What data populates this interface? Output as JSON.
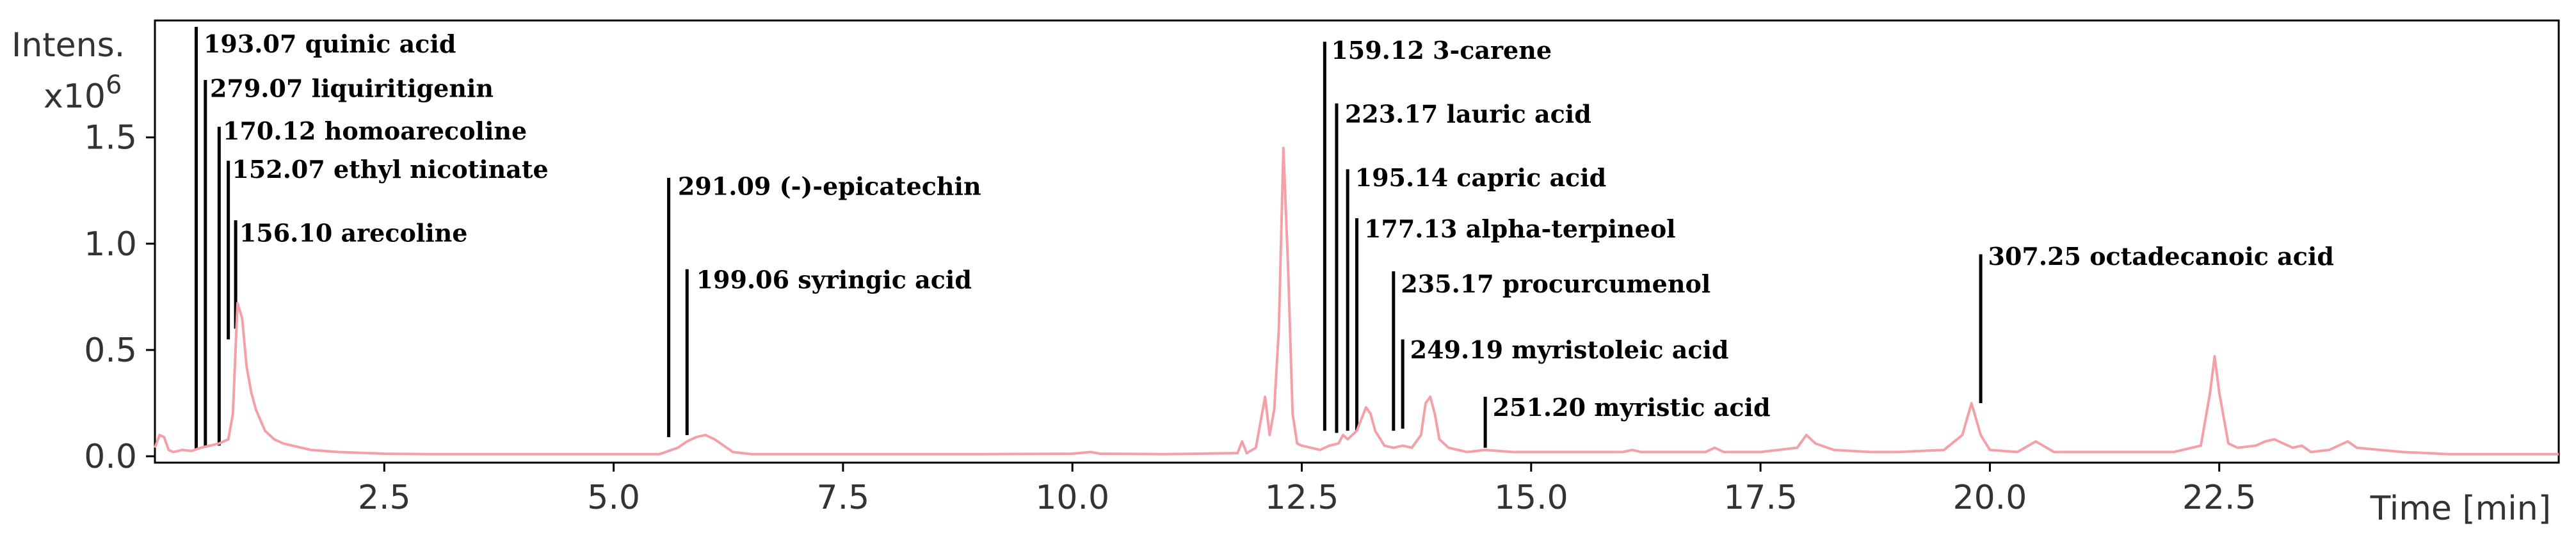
{
  "chart_data": {
    "type": "line",
    "ylabel_line1": "Intens.",
    "ylabel_line2": "x10",
    "ylabel_exponent": "6",
    "xlabel": "Time [min]",
    "xlim": [
      0.0,
      26.2
    ],
    "ylim": [
      -0.03,
      2.05
    ],
    "xticks": [
      2.5,
      5.0,
      7.5,
      10.0,
      12.5,
      15.0,
      17.5,
      20.0,
      22.5
    ],
    "xtick_labels": [
      "2.5",
      "5.0",
      "7.5",
      "10.0",
      "12.5",
      "15.0",
      "17.5",
      "20.0",
      "22.5"
    ],
    "yticks": [
      0.0,
      0.5,
      1.0,
      1.5
    ],
    "ytick_labels": [
      "0.0",
      "0.5",
      "1.0",
      "1.5"
    ],
    "line_color": "#f4a0a8",
    "series": [
      {
        "x": [
          0.0,
          0.05,
          0.1,
          0.15,
          0.2,
          0.3,
          0.4,
          0.5,
          0.6,
          0.7,
          0.8,
          0.85,
          0.9,
          0.95,
          1.0,
          1.05,
          1.1,
          1.2,
          1.3,
          1.4,
          1.5,
          1.7,
          2.0,
          2.5,
          3.0,
          4.0,
          5.0,
          5.5,
          5.7,
          5.8,
          5.9,
          6.0,
          6.1,
          6.2,
          6.3,
          6.5,
          7.0,
          8.0,
          9.0,
          10.0,
          10.2,
          10.3,
          11.0,
          11.8,
          11.85,
          11.9,
          12.0,
          12.1,
          12.15,
          12.2,
          12.25,
          12.3,
          12.35,
          12.4,
          12.45,
          12.5,
          12.6,
          12.7,
          12.8,
          12.9,
          12.95,
          13.0,
          13.1,
          13.2,
          13.25,
          13.3,
          13.4,
          13.5,
          13.6,
          13.7,
          13.8,
          13.85,
          13.9,
          13.95,
          14.0,
          14.1,
          14.3,
          14.5,
          14.8,
          15.0,
          15.5,
          16.0,
          16.1,
          16.2,
          16.5,
          16.9,
          17.0,
          17.1,
          17.5,
          17.9,
          18.0,
          18.1,
          18.3,
          18.7,
          19.0,
          19.5,
          19.7,
          19.8,
          19.9,
          20.0,
          20.3,
          20.5,
          20.7,
          21.0,
          21.5,
          22.0,
          22.3,
          22.4,
          22.45,
          22.5,
          22.6,
          22.7,
          22.9,
          23.0,
          23.1,
          23.2,
          23.3,
          23.4,
          23.5,
          23.7,
          23.8,
          23.9,
          24.0,
          24.5,
          25.0,
          26.2
        ],
        "y": [
          0.04,
          0.1,
          0.09,
          0.03,
          0.02,
          0.03,
          0.025,
          0.04,
          0.05,
          0.06,
          0.08,
          0.2,
          0.72,
          0.65,
          0.42,
          0.3,
          0.22,
          0.12,
          0.08,
          0.06,
          0.05,
          0.03,
          0.02,
          0.012,
          0.01,
          0.01,
          0.01,
          0.01,
          0.04,
          0.07,
          0.09,
          0.1,
          0.08,
          0.05,
          0.02,
          0.01,
          0.01,
          0.01,
          0.01,
          0.012,
          0.02,
          0.012,
          0.01,
          0.015,
          0.07,
          0.015,
          0.04,
          0.28,
          0.1,
          0.22,
          0.6,
          1.45,
          0.9,
          0.2,
          0.06,
          0.05,
          0.04,
          0.03,
          0.05,
          0.06,
          0.1,
          0.08,
          0.12,
          0.23,
          0.2,
          0.12,
          0.05,
          0.04,
          0.05,
          0.04,
          0.1,
          0.25,
          0.28,
          0.2,
          0.08,
          0.04,
          0.02,
          0.03,
          0.02,
          0.02,
          0.02,
          0.02,
          0.03,
          0.02,
          0.02,
          0.02,
          0.04,
          0.02,
          0.02,
          0.04,
          0.1,
          0.06,
          0.03,
          0.02,
          0.02,
          0.03,
          0.1,
          0.25,
          0.1,
          0.03,
          0.02,
          0.07,
          0.02,
          0.02,
          0.02,
          0.02,
          0.05,
          0.3,
          0.47,
          0.3,
          0.06,
          0.04,
          0.05,
          0.07,
          0.08,
          0.06,
          0.04,
          0.05,
          0.02,
          0.03,
          0.05,
          0.07,
          0.04,
          0.02,
          0.01,
          0.01
        ]
      }
    ],
    "annotations": [
      {
        "x": 0.45,
        "text": "193.07 quinic acid",
        "y0": 0.03,
        "y1": 2.02,
        "tx": 0.53,
        "ty": 1.9
      },
      {
        "x": 0.55,
        "text": "279.07 liquiritigenin",
        "y0": 0.04,
        "y1": 1.77,
        "tx": 0.6,
        "ty": 1.69
      },
      {
        "x": 0.7,
        "text": "170.12 homoarecoline",
        "y0": 0.05,
        "y1": 1.55,
        "tx": 0.74,
        "ty": 1.49
      },
      {
        "x": 0.8,
        "text": "152.07 ethyl nicotinate",
        "y0": 0.55,
        "y1": 1.39,
        "tx": 0.84,
        "ty": 1.31
      },
      {
        "x": 0.88,
        "text": "156.10 arecoline",
        "y0": 0.6,
        "y1": 1.11,
        "tx": 0.92,
        "ty": 1.01
      },
      {
        "x": 5.6,
        "text": "291.09   (-)-epicatechin",
        "y0": 0.09,
        "y1": 1.31,
        "tx": 5.7,
        "ty": 1.23
      },
      {
        "x": 5.8,
        "text": "199.06 syringic acid",
        "y0": 0.1,
        "y1": 0.88,
        "tx": 5.9,
        "ty": 0.79
      },
      {
        "x": 12.75,
        "text": "159.12 3-carene",
        "y0": 0.12,
        "y1": 1.95,
        "tx": 12.82,
        "ty": 1.87
      },
      {
        "x": 12.88,
        "text": "223.17 lauric acid",
        "y0": 0.11,
        "y1": 1.66,
        "tx": 12.97,
        "ty": 1.57
      },
      {
        "x": 13.0,
        "text": "195.14 capric acid",
        "y0": 0.12,
        "y1": 1.35,
        "tx": 13.08,
        "ty": 1.27
      },
      {
        "x": 13.1,
        "text": "177.13 alpha-terpineol",
        "y0": 0.12,
        "y1": 1.12,
        "tx": 13.18,
        "ty": 1.03
      },
      {
        "x": 13.5,
        "text": "235.17 procurcumenol",
        "y0": 0.12,
        "y1": 0.87,
        "tx": 13.58,
        "ty": 0.77
      },
      {
        "x": 13.6,
        "text": "249.19 myristoleic acid",
        "y0": 0.13,
        "y1": 0.55,
        "tx": 13.68,
        "ty": 0.46
      },
      {
        "x": 14.5,
        "text": "251.20 myristic acid",
        "y0": 0.04,
        "y1": 0.28,
        "tx": 14.58,
        "ty": 0.19
      },
      {
        "x": 19.9,
        "text": "307.25 octadecanoic acid",
        "y0": 0.25,
        "y1": 0.95,
        "tx": 19.98,
        "ty": 0.9
      }
    ]
  }
}
